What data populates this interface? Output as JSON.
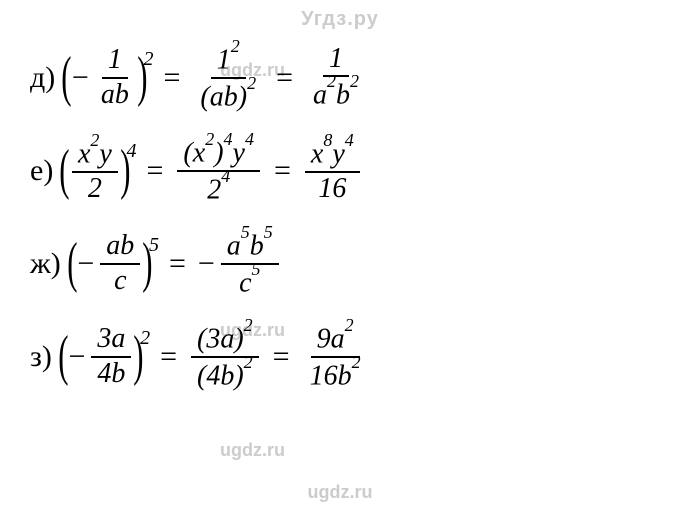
{
  "watermarks": {
    "top": "Угдз.ру",
    "mid1": "ugdz.ru",
    "mid2": "ugdz.ru",
    "mid3": "ugdz.ru",
    "bottom": "ugdz.ru"
  },
  "rows": {
    "d": {
      "label": "д)",
      "lhs_sign": "−",
      "lhs_num": "1",
      "lhs_den": "ab",
      "lhs_exp": "2",
      "step_num": "1",
      "step_num_exp": "2",
      "step_den_base": "ab",
      "step_den_exp": "2",
      "result_num": "1",
      "result_den": "a",
      "result_den_exp1": "2",
      "result_den2": "b",
      "result_den_exp2": "2"
    },
    "e": {
      "label": "е)",
      "lhs_num_a": "x",
      "lhs_num_a_exp": "2",
      "lhs_num_b": "y",
      "lhs_den": "2",
      "lhs_exp": "4",
      "step_num_a": "x",
      "step_num_a_exp": "2",
      "step_num_outer_exp": "4",
      "step_num_b": "y",
      "step_num_b_exp": "4",
      "step_den": "2",
      "step_den_exp": "4",
      "result_num_a": "x",
      "result_num_a_exp": "8",
      "result_num_b": "y",
      "result_num_b_exp": "4",
      "result_den": "16"
    },
    "zh": {
      "label": "ж)",
      "lhs_sign": "−",
      "lhs_num": "ab",
      "lhs_den": "c",
      "lhs_exp": "5",
      "result_sign": "−",
      "result_num_a": "a",
      "result_num_a_exp": "5",
      "result_num_b": "b",
      "result_num_b_exp": "5",
      "result_den": "c",
      "result_den_exp": "5"
    },
    "z": {
      "label": "з)",
      "lhs_sign": "−",
      "lhs_num_coef": "3",
      "lhs_num_var": "a",
      "lhs_den_coef": "4",
      "lhs_den_var": "b",
      "lhs_exp": "2",
      "step_num_inner": "3a",
      "step_num_exp": "2",
      "step_den_inner": "4b",
      "step_den_exp": "2",
      "result_num_coef": "9",
      "result_num_var": "a",
      "result_num_var_exp": "2",
      "result_den_coef": "16",
      "result_den_var": "b",
      "result_den_var_exp": "2"
    }
  },
  "style": {
    "font_family": "Times New Roman, serif",
    "font_size_pt": 22,
    "text_color": "#000000",
    "watermark_color": "#cccccc",
    "background": "#ffffff"
  }
}
